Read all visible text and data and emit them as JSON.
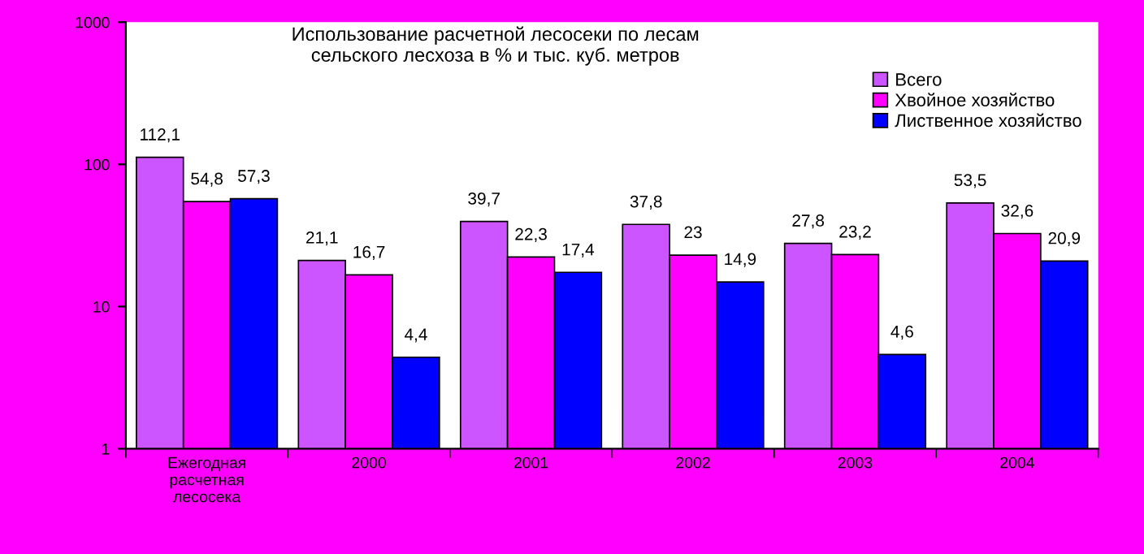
{
  "chart_data": {
    "type": "bar",
    "title": "Использование расчетной лесосеки по лесам\nсельского лесхоза в % и тыс. куб. метров",
    "categories": [
      "Ежегодная\nрасчетная\nлесосека",
      "2000",
      "2001",
      "2002",
      "2003",
      "2004"
    ],
    "series": [
      {
        "name": "Всего",
        "color": "#cc55ff",
        "values": [
          112.1,
          21.1,
          39.7,
          37.8,
          27.8,
          53.5
        ],
        "value_labels": [
          "112,1",
          "21,1",
          "39,7",
          "37,8",
          "27,8",
          "53,5"
        ]
      },
      {
        "name": "Хвойное хозяйство",
        "color": "#ff00ff",
        "values": [
          54.8,
          16.7,
          22.3,
          23,
          23.2,
          32.6
        ],
        "value_labels": [
          "54,8",
          "16,7",
          "22,3",
          "23",
          "23,2",
          "32,6"
        ]
      },
      {
        "name": "Лиственное хозяйство",
        "color": "#0000ff",
        "values": [
          57.3,
          4.4,
          17.4,
          14.9,
          4.6,
          20.9
        ],
        "value_labels": [
          "57,3",
          "4,4",
          "17,4",
          "14,9",
          "4,6",
          "20,9"
        ]
      }
    ],
    "log": true,
    "ylim": [
      1,
      1000
    ],
    "yticks": [
      1,
      10,
      100,
      1000
    ],
    "grid": false,
    "legend": "top right"
  }
}
